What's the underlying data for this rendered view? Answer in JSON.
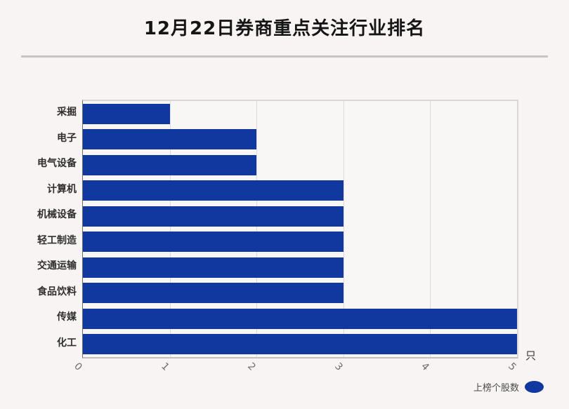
{
  "header": {
    "title": "12月22日券商重点关注行业排名"
  },
  "chart_data": {
    "type": "bar",
    "orientation": "horizontal",
    "title": "12月22日券商重点关注行业排名",
    "categories": [
      "采掘",
      "电子",
      "电气设备",
      "计算机",
      "机械设备",
      "轻工制造",
      "交通运输",
      "食品饮料",
      "传媒",
      "化工"
    ],
    "values": [
      1,
      2,
      2,
      3,
      3,
      3,
      3,
      3,
      5,
      5
    ],
    "series_name": "上榜个股数",
    "xlabel": "只",
    "ylabel": "",
    "xlim": [
      0,
      5
    ],
    "x_ticks": [
      "0",
      "1",
      "2",
      "3",
      "4",
      "5"
    ],
    "grid": true,
    "legend": {
      "label": "上榜个股数",
      "position": "bottom-right",
      "marker": "ellipse"
    },
    "colors": {
      "bar": "#11389e",
      "background": "#f7f4f3",
      "plot_background": "#f9f6f6",
      "grid": "#dcdada",
      "tick_text": "#6e6e6e",
      "category_text": "#2f2f2f",
      "title_text": "#151515",
      "divider": "#c6c4c4"
    }
  }
}
